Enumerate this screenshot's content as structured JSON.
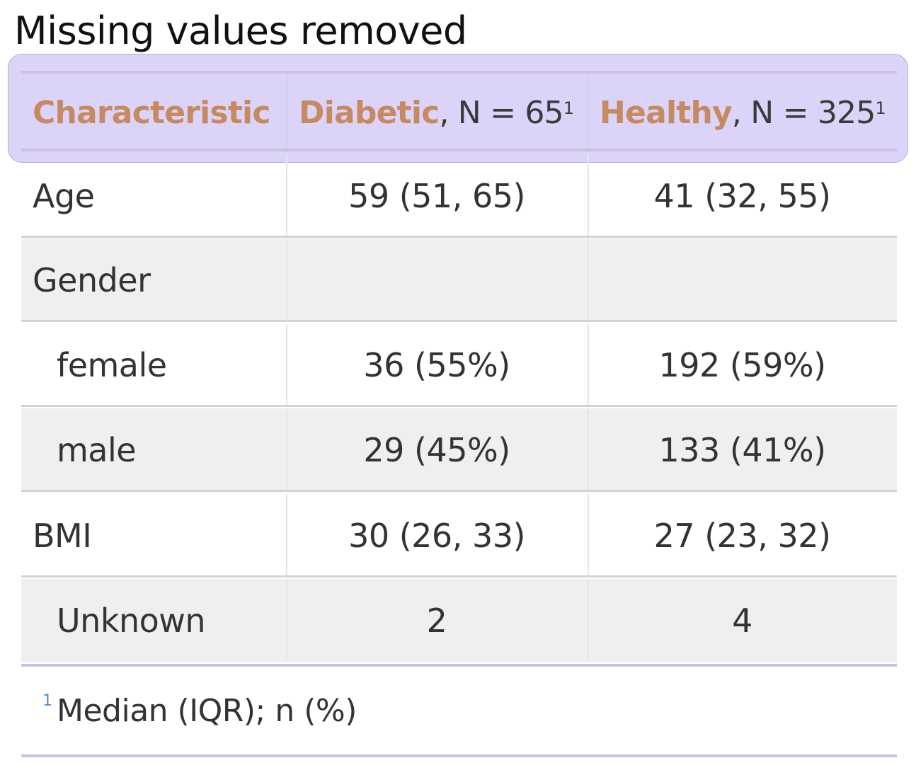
{
  "title": "Missing values removed",
  "header": {
    "col0": {
      "bold": "Characteristic"
    },
    "col1": {
      "bold": "Diabetic",
      "rest": ", N = 65",
      "mark": "1"
    },
    "col2": {
      "bold": "Healthy",
      "rest": ", N = 325",
      "mark": "1"
    }
  },
  "rows": [
    {
      "label": "Age",
      "diabetic": "59 (51, 65)",
      "healthy": "41 (32, 55)"
    },
    {
      "label": "Gender",
      "diabetic": "",
      "healthy": ""
    },
    {
      "label": "female",
      "diabetic": "36 (55%)",
      "healthy": "192 (59%)"
    },
    {
      "label": "male",
      "diabetic": "29 (45%)",
      "healthy": "133 (41%)"
    },
    {
      "label": "BMI",
      "diabetic": "30 (26, 33)",
      "healthy": "27 (23, 32)"
    },
    {
      "label": "Unknown",
      "diabetic": "2",
      "healthy": "4"
    }
  ],
  "footnote": {
    "mark": "1",
    "text": "Median (IQR); n (%)"
  },
  "colors": {
    "header_bold": "#c58a62",
    "header_highlight": "#dcd3f8",
    "row_shade": "#efefef",
    "footnote_mark": "#4a8fd8"
  }
}
